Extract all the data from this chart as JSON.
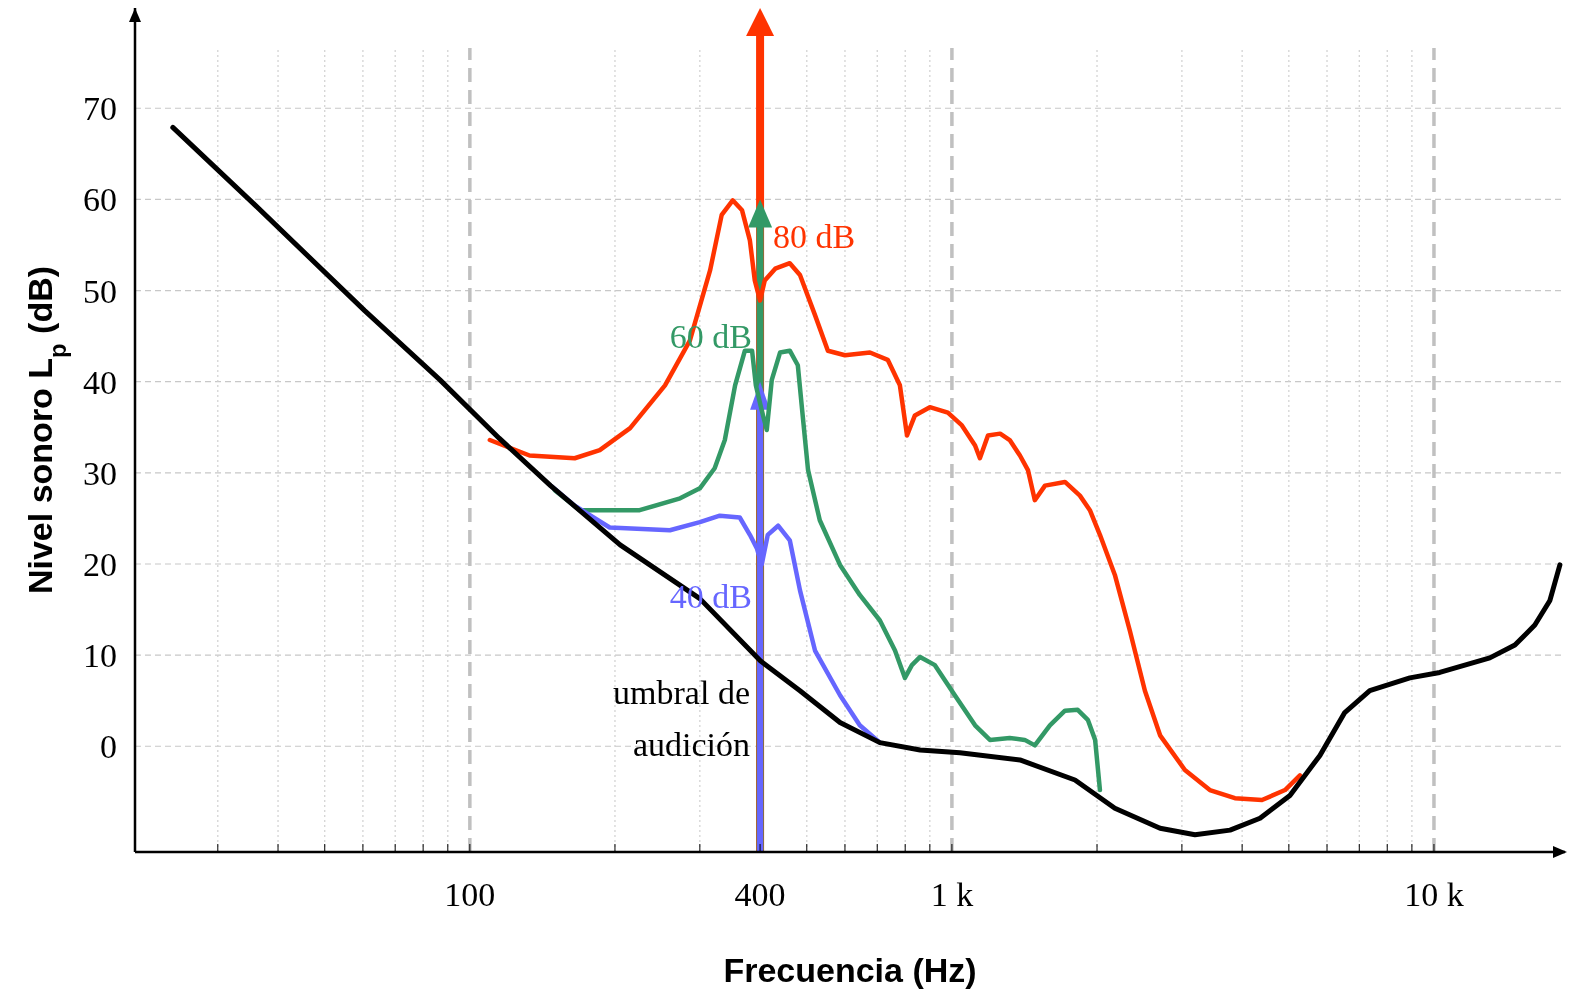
{
  "chart_data": {
    "type": "line",
    "xlabel": "Frecuencia (Hz)",
    "ylabel": "Nivel sonoro L$_{p}$ (dB)",
    "log": "x",
    "grid": true,
    "marker": "none",
    "line_style": "solid",
    "xlim": [
      20.2,
      18700
    ],
    "ylim": [
      -11.6,
      81
    ],
    "xticks": [
      {
        "value": 30,
        "label": null
      },
      {
        "value": 40,
        "label": null
      },
      {
        "value": 50,
        "label": null
      },
      {
        "value": 60,
        "label": null
      },
      {
        "value": 70,
        "label": null
      },
      {
        "value": 80,
        "label": null
      },
      {
        "value": 90,
        "label": null
      },
      {
        "value": 100,
        "label": "100"
      },
      {
        "value": 200,
        "label": null
      },
      {
        "value": 300,
        "label": null
      },
      {
        "value": 400,
        "label": "400"
      },
      {
        "value": 500,
        "label": null
      },
      {
        "value": 600,
        "label": null
      },
      {
        "value": 700,
        "label": null
      },
      {
        "value": 800,
        "label": null
      },
      {
        "value": 900,
        "label": null
      },
      {
        "value": 1000,
        "label": "1 k"
      },
      {
        "value": 2000,
        "label": null
      },
      {
        "value": 3000,
        "label": null
      },
      {
        "value": 4000,
        "label": null
      },
      {
        "value": 5000,
        "label": null
      },
      {
        "value": 6000,
        "label": null
      },
      {
        "value": 7000,
        "label": null
      },
      {
        "value": 8000,
        "label": null
      },
      {
        "value": 9000,
        "label": null
      },
      {
        "value": 10000,
        "label": "10 k"
      }
    ],
    "yticks": [
      0,
      10,
      20,
      30,
      40,
      50,
      60,
      70
    ],
    "series": [
      {
        "color": "#ff3300",
        "x": [
          110,
          133,
          165,
          186,
          215,
          254,
          286,
          315,
          333,
          351,
          367,
          381,
          390,
          400,
          409,
          430,
          461,
          484,
          520,
          553,
          600,
          676,
          736,
          780,
          807,
          838,
          900,
          981,
          1049,
          1117,
          1143,
          1188,
          1259,
          1318,
          1384,
          1438,
          1486,
          1560,
          1716,
          1843,
          1933,
          2028,
          2178,
          2339,
          2514,
          2703,
          3043,
          3428,
          3864,
          4398,
          4909,
          5272
        ],
        "values": [
          33.6,
          31.9,
          31.6,
          32.5,
          34.9,
          39.6,
          44.5,
          52.2,
          58.3,
          59.9,
          58.8,
          55.5,
          51.1,
          48.9,
          51.1,
          52.4,
          53.0,
          51.7,
          47.3,
          43.4,
          42.9,
          43.2,
          42.4,
          39.6,
          34.1,
          36.3,
          37.2,
          36.6,
          35.2,
          33.0,
          31.6,
          34.1,
          34.3,
          33.6,
          31.9,
          30.3,
          27.0,
          28.6,
          29.0,
          27.5,
          25.9,
          23.2,
          18.8,
          12.7,
          6.1,
          1.2,
          -2.6,
          -4.8,
          -5.7,
          -5.9,
          -4.8,
          -3.2
        ]
      },
      {
        "color": "#339966",
        "x": [
          150,
          169,
          225,
          273,
          300,
          322,
          338,
          355,
          372,
          385,
          392,
          403,
          413,
          423,
          440,
          461,
          479,
          489,
          503,
          532,
          586,
          644,
          709,
          762,
          799,
          826,
          859,
          922,
          1014,
          1117,
          1199,
          1318,
          1416,
          1486,
          1597,
          1716,
          1824,
          1914,
          1982,
          2028
        ],
        "values": [
          28.1,
          25.9,
          25.9,
          27.2,
          28.3,
          30.5,
          33.6,
          39.6,
          43.4,
          43.4,
          39.6,
          36.9,
          34.7,
          40.2,
          43.2,
          43.4,
          41.8,
          36.9,
          30.3,
          24.8,
          19.9,
          16.6,
          13.8,
          10.5,
          7.5,
          8.9,
          9.8,
          8.9,
          5.6,
          2.3,
          0.7,
          0.9,
          0.7,
          0.1,
          2.3,
          3.9,
          4.0,
          2.9,
          0.7,
          -4.8
        ]
      },
      {
        "color": "#6666ff",
        "x": [
          147,
          165,
          195,
          260,
          300,
          330,
          363,
          381,
          394,
          403,
          415,
          436,
          461,
          484,
          520,
          586,
          644,
          709
        ],
        "values": [
          28.6,
          26.4,
          24.0,
          23.7,
          24.6,
          25.3,
          25.1,
          23.2,
          21.7,
          19.9,
          23.2,
          24.2,
          22.6,
          17.1,
          10.5,
          5.6,
          2.3,
          0.4
        ]
      },
      {
        "name": "umbral de audición",
        "color": "#000000",
        "x": [
          24.2,
          35,
          60.5,
          86.7,
          115,
          147,
          205,
          300,
          400,
          484,
          586,
          709,
          859,
          1039,
          1384,
          1800,
          2178,
          2703,
          3193,
          3776,
          4357,
          5026,
          5800,
          6530,
          7360,
          8913,
          10280,
          13060,
          14720,
          16190,
          17400,
          18250
        ],
        "values": [
          67.9,
          59.9,
          47.8,
          40.2,
          33.8,
          28.6,
          22.1,
          16.2,
          9.4,
          6.1,
          2.6,
          0.4,
          -0.4,
          -0.7,
          -1.5,
          -3.7,
          -6.8,
          -9.0,
          -9.7,
          -9.2,
          -7.9,
          -5.4,
          -1.0,
          3.7,
          6.1,
          7.5,
          8.1,
          9.7,
          11.1,
          13.3,
          16.0,
          19.9
        ]
      }
    ],
    "annotations": [
      "80 dB",
      "60 dB",
      "40 dB"
    ]
  }
}
